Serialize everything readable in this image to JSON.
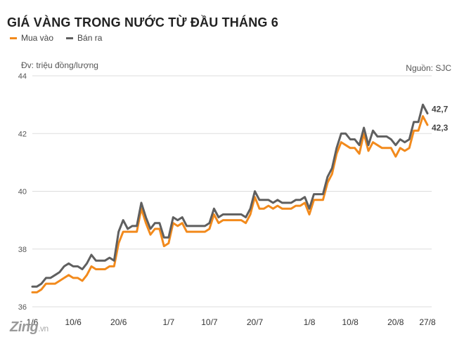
{
  "header": {
    "title": "GIÁ VÀNG TRONG NƯỚC TỪ ĐẦU THÁNG 6",
    "unit_note": "Đv: triệu đồng/lượng",
    "source_note": "Nguồn: SJC"
  },
  "legend": {
    "buy_label": "Mua vào",
    "sell_label": "Bán ra"
  },
  "brand": {
    "name": "Zing",
    "suffix": ".vn"
  },
  "colors": {
    "buy": "#f28a1c",
    "sell": "#5f5f5f",
    "grid": "#dddddd",
    "axis_text": "#555555"
  },
  "chart_data": {
    "type": "line",
    "title": "GIÁ VÀNG TRONG NƯỚC TỪ ĐẦU THÁNG 6",
    "ylabel": "Đv: triệu đồng/lượng",
    "ylim": [
      36,
      44
    ],
    "yticks": [
      36,
      38,
      40,
      42,
      44
    ],
    "grid": true,
    "legend_position": "top-left",
    "x_start": "1/6",
    "x_tick_labels": [
      {
        "label": "1/6",
        "index": 0
      },
      {
        "label": "10/6",
        "index": 9
      },
      {
        "label": "20/6",
        "index": 19
      },
      {
        "label": "1/7",
        "index": 30
      },
      {
        "label": "10/7",
        "index": 39
      },
      {
        "label": "20/7",
        "index": 49
      },
      {
        "label": "1/8",
        "index": 61
      },
      {
        "label": "10/8",
        "index": 70
      },
      {
        "label": "20/8",
        "index": 80
      },
      {
        "label": "27/8",
        "index": 87
      }
    ],
    "series": [
      {
        "name": "Mua vào",
        "color": "#f28a1c",
        "values": [
          36.5,
          36.5,
          36.6,
          36.8,
          36.8,
          36.8,
          36.9,
          37.0,
          37.1,
          37.0,
          37.0,
          36.9,
          37.1,
          37.4,
          37.3,
          37.3,
          37.3,
          37.4,
          37.4,
          38.2,
          38.6,
          38.6,
          38.6,
          38.6,
          39.4,
          38.9,
          38.5,
          38.7,
          38.7,
          38.1,
          38.2,
          38.9,
          38.8,
          38.9,
          38.6,
          38.6,
          38.6,
          38.6,
          38.6,
          38.7,
          39.2,
          38.9,
          39.0,
          39.0,
          39.0,
          39.0,
          39.0,
          38.9,
          39.2,
          39.8,
          39.4,
          39.4,
          39.5,
          39.4,
          39.5,
          39.4,
          39.4,
          39.4,
          39.5,
          39.5,
          39.6,
          39.2,
          39.7,
          39.7,
          39.7,
          40.3,
          40.6,
          41.3,
          41.7,
          41.6,
          41.5,
          41.5,
          41.3,
          42.0,
          41.4,
          41.7,
          41.6,
          41.5,
          41.5,
          41.5,
          41.2,
          41.5,
          41.4,
          41.5,
          42.1,
          42.1,
          42.6,
          42.3
        ],
        "end_label": "42,3"
      },
      {
        "name": "Bán ra",
        "color": "#5f5f5f",
        "values": [
          36.7,
          36.7,
          36.8,
          37.0,
          37.0,
          37.1,
          37.2,
          37.4,
          37.5,
          37.4,
          37.4,
          37.3,
          37.5,
          37.8,
          37.6,
          37.6,
          37.6,
          37.7,
          37.6,
          38.6,
          39.0,
          38.7,
          38.8,
          38.8,
          39.6,
          39.1,
          38.7,
          38.9,
          38.9,
          38.4,
          38.4,
          39.1,
          39.0,
          39.1,
          38.8,
          38.8,
          38.8,
          38.8,
          38.8,
          38.9,
          39.4,
          39.1,
          39.2,
          39.2,
          39.2,
          39.2,
          39.2,
          39.1,
          39.4,
          40.0,
          39.7,
          39.7,
          39.7,
          39.6,
          39.7,
          39.6,
          39.6,
          39.6,
          39.7,
          39.7,
          39.8,
          39.4,
          39.9,
          39.9,
          39.9,
          40.5,
          40.8,
          41.5,
          42.0,
          42.0,
          41.8,
          41.8,
          41.6,
          42.2,
          41.6,
          42.1,
          41.9,
          41.9,
          41.9,
          41.8,
          41.6,
          41.8,
          41.7,
          41.8,
          42.4,
          42.4,
          43.0,
          42.7
        ],
        "end_label": "42,7"
      }
    ]
  }
}
